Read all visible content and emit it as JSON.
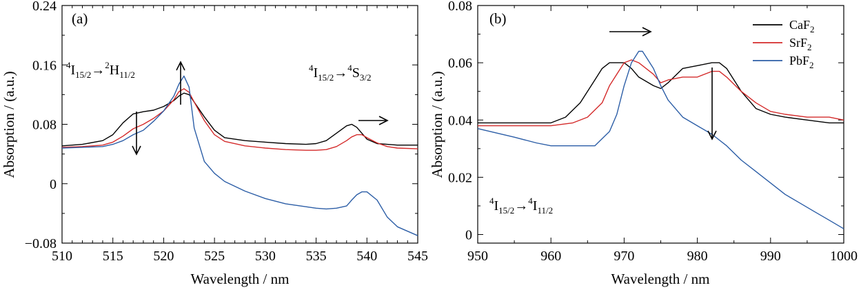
{
  "colors": {
    "CaF2": "#000000",
    "SrF2": "#d42a2a",
    "PbF2": "#2b5da6"
  },
  "chart_data": [
    {
      "type": "line",
      "panel_label": "(a)",
      "xlabel": "Wavelength / nm",
      "ylabel": "Absorption / (a.u.)",
      "xlim": [
        510,
        545
      ],
      "ylim": [
        -0.08,
        0.24
      ],
      "x_ticks": [
        "510",
        "515",
        "520",
        "525",
        "530",
        "535",
        "540",
        "545"
      ],
      "y_ticks": [
        "−0.08",
        "0",
        "0.08",
        "0.16",
        "0.24"
      ],
      "annotations": {
        "a1": {
          "pre": "4",
          "A": "I",
          "subA": "15/2",
          "arrow": "→",
          "pre2": "2",
          "B": "H",
          "subB": "11/2"
        },
        "a2": {
          "pre": "4",
          "A": "I",
          "subA": "15/2",
          "arrow": "→",
          "pre2": "4",
          "B": "S",
          "subB": "3/2"
        }
      },
      "series": [
        {
          "name": "CaF2",
          "x": [
            510,
            512,
            514,
            515,
            516,
            517,
            518,
            519,
            520,
            521,
            521.5,
            522,
            522.5,
            523,
            524,
            525,
            526,
            528,
            530,
            532,
            534,
            535,
            536,
            537,
            538,
            538.5,
            539,
            539.5,
            540,
            541,
            542,
            543,
            545
          ],
          "y": [
            0.051,
            0.053,
            0.058,
            0.066,
            0.082,
            0.094,
            0.097,
            0.099,
            0.104,
            0.112,
            0.118,
            0.122,
            0.12,
            0.11,
            0.09,
            0.072,
            0.062,
            0.058,
            0.056,
            0.054,
            0.053,
            0.054,
            0.058,
            0.068,
            0.078,
            0.08,
            0.076,
            0.068,
            0.06,
            0.054,
            0.053,
            0.052,
            0.052
          ]
        },
        {
          "name": "SrF2",
          "x": [
            510,
            512,
            514,
            515,
            516,
            517,
            518,
            519,
            520,
            521,
            521.5,
            522,
            522.5,
            523,
            524,
            525,
            526,
            528,
            530,
            532,
            534,
            535,
            536,
            537,
            538,
            538.5,
            539,
            539.5,
            540,
            541,
            542,
            543,
            545
          ],
          "y": [
            0.049,
            0.05,
            0.052,
            0.056,
            0.064,
            0.074,
            0.08,
            0.088,
            0.098,
            0.113,
            0.124,
            0.128,
            0.123,
            0.11,
            0.085,
            0.066,
            0.057,
            0.051,
            0.048,
            0.046,
            0.045,
            0.045,
            0.046,
            0.05,
            0.058,
            0.063,
            0.066,
            0.066,
            0.062,
            0.055,
            0.05,
            0.048,
            0.047
          ]
        },
        {
          "name": "PbF2",
          "x": [
            510,
            512,
            514,
            515,
            516,
            517,
            518,
            519,
            520,
            521,
            521.5,
            522,
            522.5,
            523,
            524,
            525,
            526,
            528,
            530,
            532,
            534,
            535,
            536,
            537,
            538,
            538.5,
            539,
            539.5,
            540,
            541,
            542,
            543,
            545
          ],
          "y": [
            0.048,
            0.049,
            0.05,
            0.053,
            0.058,
            0.066,
            0.072,
            0.084,
            0.098,
            0.118,
            0.134,
            0.145,
            0.13,
            0.075,
            0.03,
            0.014,
            0.003,
            -0.01,
            -0.02,
            -0.027,
            -0.031,
            -0.033,
            -0.034,
            -0.033,
            -0.03,
            -0.022,
            -0.015,
            -0.011,
            -0.011,
            -0.022,
            -0.045,
            -0.058,
            -0.07
          ]
        }
      ]
    },
    {
      "type": "line",
      "panel_label": "(b)",
      "xlabel": "Wavelength / nm",
      "ylabel": "Absorption / (a.u.)",
      "xlim": [
        950,
        1000
      ],
      "ylim": [
        -0.003,
        0.08
      ],
      "x_ticks": [
        "950",
        "960",
        "970",
        "980",
        "990",
        "1000"
      ],
      "y_ticks": [
        "0",
        "0.02",
        "0.04",
        "0.06",
        "0.08"
      ],
      "legend_placement": "top-right",
      "annotations": {
        "b1": {
          "pre": "4",
          "A": "I",
          "subA": "15/2",
          "arrow": "→",
          "pre2": "4",
          "B": "I",
          "subB": "11/2"
        }
      },
      "series": [
        {
          "name": "CaF2",
          "label": "CaF",
          "sub": "2",
          "x": [
            950,
            955,
            960,
            962,
            964,
            966,
            967,
            968,
            970,
            971,
            972,
            974,
            975,
            976,
            978,
            980,
            982,
            983,
            984,
            986,
            988,
            990,
            992,
            995,
            998,
            1000
          ],
          "y": [
            0.039,
            0.039,
            0.039,
            0.041,
            0.046,
            0.054,
            0.058,
            0.06,
            0.06,
            0.058,
            0.055,
            0.052,
            0.051,
            0.053,
            0.058,
            0.059,
            0.06,
            0.06,
            0.058,
            0.05,
            0.044,
            0.042,
            0.041,
            0.04,
            0.039,
            0.039
          ]
        },
        {
          "name": "SrF2",
          "label": "SrF",
          "sub": "2",
          "x": [
            950,
            955,
            960,
            963,
            965,
            967,
            968,
            970,
            971,
            972,
            974,
            975,
            976,
            978,
            980,
            982,
            983,
            984,
            986,
            988,
            990,
            992,
            995,
            998,
            1000
          ],
          "y": [
            0.038,
            0.038,
            0.038,
            0.039,
            0.041,
            0.046,
            0.052,
            0.06,
            0.061,
            0.06,
            0.056,
            0.053,
            0.054,
            0.055,
            0.055,
            0.057,
            0.057,
            0.055,
            0.05,
            0.046,
            0.043,
            0.042,
            0.041,
            0.041,
            0.04
          ]
        },
        {
          "name": "PbF2",
          "label": "PbF",
          "sub": "2",
          "x": [
            950,
            955,
            958,
            960,
            962,
            964,
            966,
            968,
            969,
            970,
            971,
            972,
            972.5,
            973,
            974,
            975,
            976,
            978,
            980,
            982,
            984,
            986,
            988,
            990,
            992,
            994,
            996,
            998,
            1000
          ],
          "y": [
            0.037,
            0.034,
            0.032,
            0.031,
            0.031,
            0.031,
            0.031,
            0.036,
            0.042,
            0.052,
            0.06,
            0.064,
            0.064,
            0.062,
            0.058,
            0.052,
            0.047,
            0.041,
            0.038,
            0.035,
            0.031,
            0.026,
            0.022,
            0.018,
            0.014,
            0.011,
            0.008,
            0.005,
            0.002
          ]
        }
      ]
    }
  ]
}
